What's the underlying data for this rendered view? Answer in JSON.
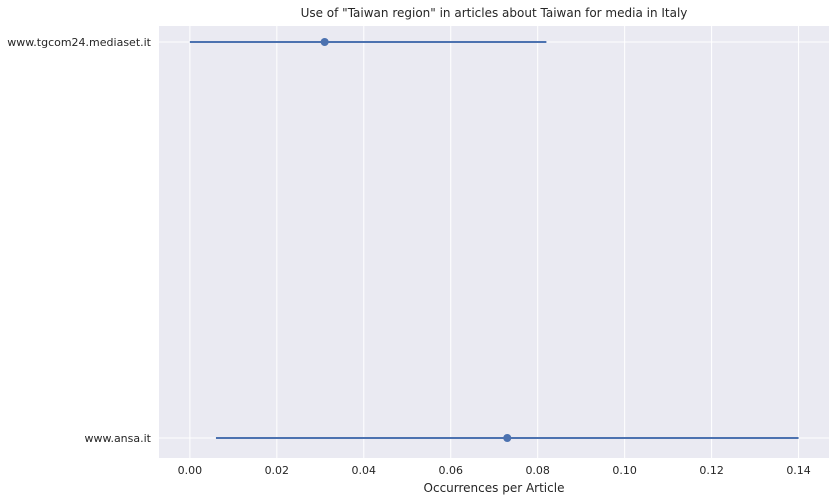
{
  "chart_data": {
    "type": "scatter",
    "title": "Use of \"Taiwan region\" in articles about Taiwan for media in Italy",
    "xlabel": "Occurrences per Article",
    "ylabel": "",
    "xlim": [
      -0.0071,
      0.147
    ],
    "xticks": [
      0.0,
      0.02,
      0.04,
      0.06,
      0.08,
      0.1,
      0.12,
      0.14
    ],
    "xtick_labels": [
      "0.00",
      "0.02",
      "0.04",
      "0.06",
      "0.08",
      "0.10",
      "0.12",
      "0.14"
    ],
    "grid": true,
    "categories": [
      "www.tgcom24.mediaset.it",
      "www.ansa.it"
    ],
    "values": [
      0.031,
      0.073
    ],
    "ci_low": [
      0.0,
      0.006
    ],
    "ci_high": [
      0.082,
      0.14
    ],
    "colors": {
      "series": "#4c72b0",
      "background": "#eaeaf2",
      "grid": "#ffffff"
    }
  }
}
